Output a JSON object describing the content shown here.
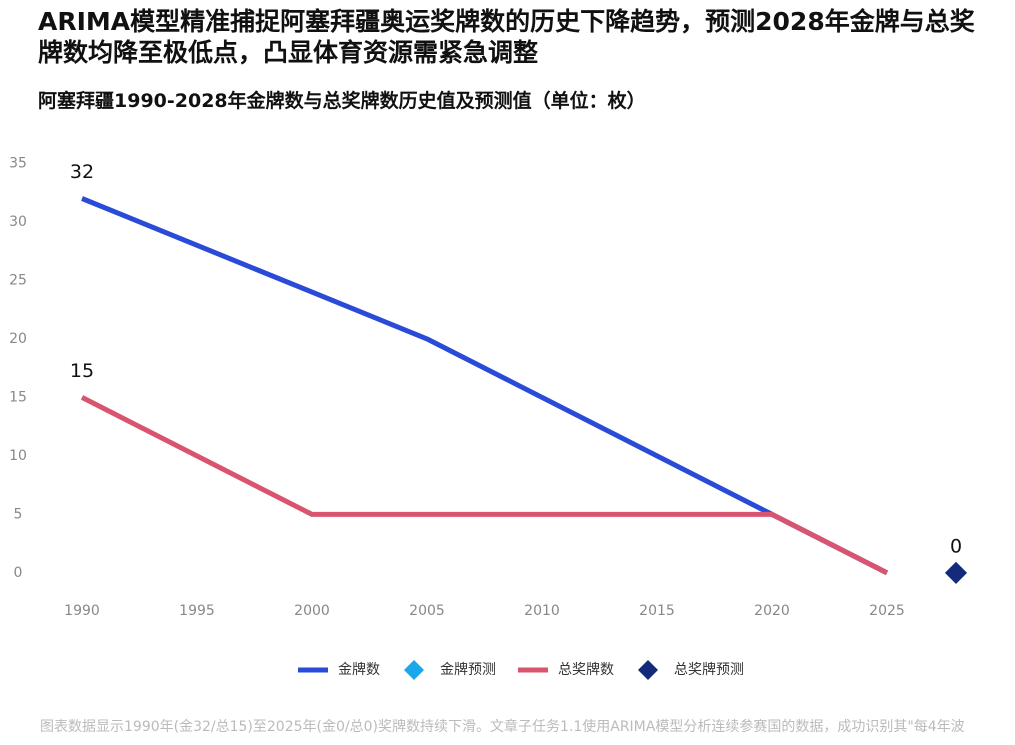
{
  "chart_data": {
    "type": "line",
    "title": "ARIMA模型精准捕捉阿塞拜疆奥运奖牌数的历史下降趋势，预测2028年金牌与总奖牌数均降至极低点，凸显体育资源需紧急调整",
    "subtitle": "阿塞拜疆1990-2028年金牌数与总奖牌数历史值及预测值（单位：枚）",
    "footer": "图表数据显示1990年(金32/总15)至2025年(金0/总0)奖牌数持续下滑。文章子任务1.1使用ARIMA模型分析连续参赛国的数据，成功识别其\"每4年波",
    "x": [
      1990,
      2000,
      2005,
      2020,
      2025,
      2028
    ],
    "series": [
      {
        "name": "金牌数",
        "color": "#2a4bd7",
        "style": "line",
        "values": [
          32,
          24,
          20,
          5,
          0,
          null
        ]
      },
      {
        "name": "金牌预测",
        "color": "#1ba8e8",
        "style": "diamond",
        "values": [
          null,
          null,
          null,
          null,
          null,
          0
        ]
      },
      {
        "name": "总奖牌数",
        "color": "#d9546e",
        "style": "line",
        "values": [
          15,
          5,
          5,
          5,
          0,
          null
        ]
      },
      {
        "name": "总奖牌预测",
        "color": "#142a7a",
        "style": "diamond",
        "values": [
          null,
          null,
          null,
          null,
          null,
          0
        ]
      }
    ],
    "xlim": [
      1988,
      2029
    ],
    "xticks": [
      1990,
      1995,
      2000,
      2005,
      2010,
      2015,
      2020,
      2025
    ],
    "ylim": [
      -3,
      37
    ],
    "yticks": [
      0,
      5,
      10,
      15,
      20,
      25,
      30,
      35
    ],
    "grid": false
  }
}
